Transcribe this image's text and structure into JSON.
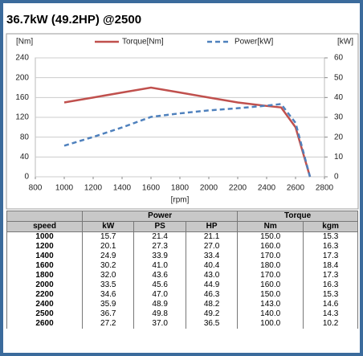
{
  "chart_data": {
    "type": "line",
    "title": "36.7kW (49.2HP) @2500",
    "x": [
      1000,
      1200,
      1400,
      1600,
      1800,
      2000,
      2200,
      2400,
      2500,
      2600,
      2700
    ],
    "series": [
      {
        "name": "Torque[Nm]",
        "color": "#c0504d",
        "dash": false,
        "values": [
          150,
          160,
          170,
          180,
          170,
          160,
          150,
          143,
          140,
          100,
          0
        ]
      },
      {
        "name": "Power[kW]",
        "color": "#4f81bd",
        "dash": true,
        "axis": "y2",
        "values": [
          15.7,
          20.1,
          24.9,
          30.2,
          32.0,
          33.5,
          34.6,
          35.9,
          36.7,
          27.2,
          0
        ]
      }
    ],
    "y_label": "[Nm]",
    "y2_label": "[kW]",
    "x_label": "[rpm]",
    "xlim": [
      800,
      2800
    ],
    "xticks": [
      800,
      1000,
      1200,
      1400,
      1600,
      1800,
      2000,
      2200,
      2400,
      2600,
      2800
    ],
    "ylim": [
      0,
      240
    ],
    "yticks": [
      0,
      40,
      80,
      120,
      160,
      200,
      240
    ],
    "y2lim": [
      0,
      60
    ],
    "y2ticks": [
      0,
      10,
      20,
      30,
      40,
      50,
      60
    ],
    "grid": true,
    "legend": "top"
  },
  "table": {
    "group_headers": [
      "Power",
      "Torque"
    ],
    "columns": [
      "speed",
      "kW",
      "PS",
      "HP",
      "Nm",
      "kgm"
    ],
    "rows": [
      [
        "1000",
        "15.7",
        "21.4",
        "21.1",
        "150.0",
        "15.3"
      ],
      [
        "1200",
        "20.1",
        "27.3",
        "27.0",
        "160.0",
        "16.3"
      ],
      [
        "1400",
        "24.9",
        "33.9",
        "33.4",
        "170.0",
        "17.3"
      ],
      [
        "1600",
        "30.2",
        "41.0",
        "40.4",
        "180.0",
        "18.4"
      ],
      [
        "1800",
        "32.0",
        "43.6",
        "43.0",
        "170.0",
        "17.3"
      ],
      [
        "2000",
        "33.5",
        "45.6",
        "44.9",
        "160.0",
        "16.3"
      ],
      [
        "2200",
        "34.6",
        "47.0",
        "46.3",
        "150.0",
        "15.3"
      ],
      [
        "2400",
        "35.9",
        "48.9",
        "48.2",
        "143.0",
        "14.6"
      ],
      [
        "2500",
        "36.7",
        "49.8",
        "49.2",
        "140.0",
        "14.3"
      ],
      [
        "2600",
        "27.2",
        "37.0",
        "36.5",
        "100.0",
        "10.2"
      ]
    ]
  }
}
